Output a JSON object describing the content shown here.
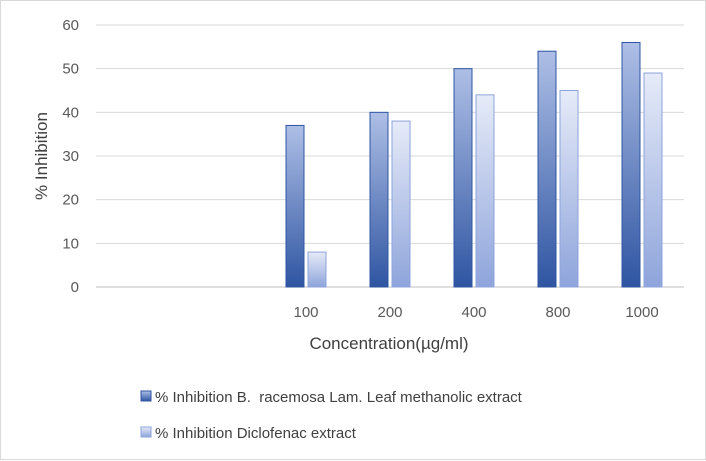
{
  "chart_data": {
    "type": "bar",
    "title": "",
    "xlabel": "Concentration(µg/ml)",
    "ylabel": "% Inhibition",
    "categories": [
      "",
      "",
      "100",
      "200",
      "400",
      "800",
      "1000"
    ],
    "series": [
      {
        "name": "% Inhibition B.  racemosa Lam. Leaf methanolic extract",
        "values": [
          null,
          null,
          37,
          40,
          50,
          54,
          56
        ],
        "color": "#3c63ad"
      },
      {
        "name": "% Inhibition Diclofenac extract",
        "values": [
          null,
          null,
          8,
          38,
          44,
          45,
          49
        ],
        "color": "#a9b9e4"
      }
    ],
    "ylim": [
      0,
      60
    ],
    "yticks": [
      0,
      10,
      20,
      30,
      40,
      50,
      60
    ],
    "grid": true,
    "legend": "bottom"
  }
}
